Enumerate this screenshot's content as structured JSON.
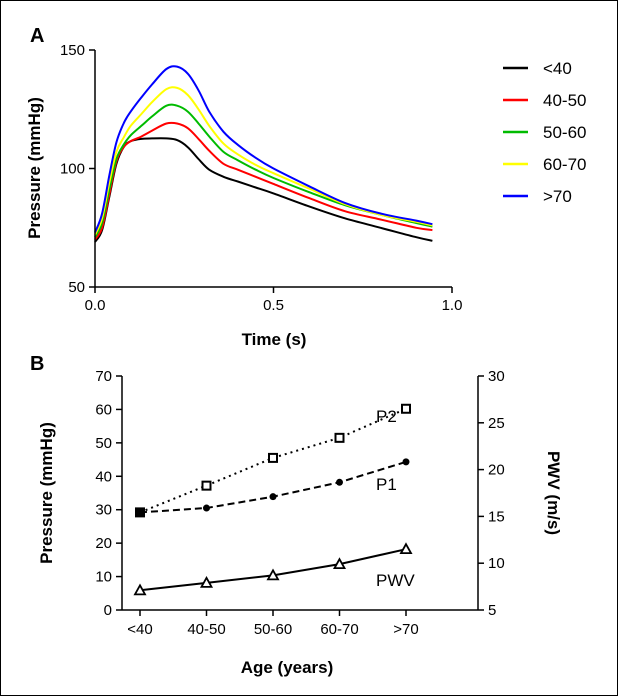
{
  "chart_data": [
    {
      "panel": "A",
      "type": "line",
      "xlabel": "Time (s)",
      "ylabel": "Pressure (mmHg)",
      "xlim": [
        0,
        1.0
      ],
      "ylim": [
        50,
        150
      ],
      "xticks": [
        "0.0",
        "0.5",
        "1.0"
      ],
      "yticks": [
        "50",
        "100",
        "150"
      ],
      "legend_position": "right",
      "series": [
        {
          "name": "<40",
          "color": "#000000",
          "x": [
            0,
            0.02,
            0.04,
            0.06,
            0.08,
            0.1,
            0.13,
            0.16,
            0.2,
            0.23,
            0.26,
            0.29,
            0.32,
            0.36,
            0.4,
            0.45,
            0.5,
            0.6,
            0.7,
            0.8,
            0.9,
            0.945
          ],
          "y": [
            69,
            74,
            88,
            102,
            109,
            111.5,
            112.5,
            112.7,
            112.7,
            112,
            109,
            104,
            99.5,
            96.5,
            94.5,
            92,
            89.5,
            84,
            79,
            75,
            71,
            69.5
          ]
        },
        {
          "name": "40-50",
          "color": "#ff0000",
          "x": [
            0,
            0.02,
            0.04,
            0.06,
            0.08,
            0.1,
            0.13,
            0.16,
            0.2,
            0.23,
            0.26,
            0.29,
            0.32,
            0.36,
            0.4,
            0.45,
            0.5,
            0.6,
            0.7,
            0.8,
            0.9,
            0.945
          ],
          "y": [
            70,
            75,
            89,
            103,
            109,
            111.5,
            113.5,
            116,
            119,
            119,
            117,
            112.5,
            107.5,
            102,
            99.5,
            96.5,
            93.5,
            87.5,
            82,
            78.5,
            75,
            74
          ]
        },
        {
          "name": "50-60",
          "color": "#00bb00",
          "x": [
            0,
            0.02,
            0.04,
            0.06,
            0.08,
            0.1,
            0.13,
            0.16,
            0.2,
            0.23,
            0.26,
            0.29,
            0.32,
            0.36,
            0.4,
            0.45,
            0.5,
            0.6,
            0.7,
            0.8,
            0.9,
            0.945
          ],
          "y": [
            71,
            77,
            91,
            104,
            110,
            114,
            118,
            122,
            126.5,
            126.5,
            124,
            119,
            113.5,
            107,
            103.5,
            99.5,
            96,
            90,
            84.5,
            80.5,
            77,
            75.5
          ]
        },
        {
          "name": "60-70",
          "color": "#ffff00",
          "x": [
            0,
            0.02,
            0.04,
            0.06,
            0.08,
            0.1,
            0.13,
            0.16,
            0.2,
            0.23,
            0.26,
            0.29,
            0.32,
            0.36,
            0.4,
            0.45,
            0.5,
            0.6,
            0.7,
            0.8,
            0.9,
            0.945
          ],
          "y": [
            72,
            79,
            94,
            107,
            113,
            118,
            123,
            128,
            133.5,
            134,
            131,
            125,
            118,
            110.5,
            106,
            101.5,
            98,
            91.5,
            85,
            80.5,
            77.5,
            76
          ]
        },
        {
          "name": ">70",
          "color": "#0000ff",
          "x": [
            0,
            0.02,
            0.04,
            0.06,
            0.08,
            0.1,
            0.13,
            0.16,
            0.2,
            0.23,
            0.26,
            0.29,
            0.32,
            0.36,
            0.4,
            0.45,
            0.5,
            0.6,
            0.7,
            0.8,
            0.9,
            0.945
          ],
          "y": [
            73,
            81,
            97,
            111,
            119,
            124,
            130,
            135.5,
            142,
            143,
            140,
            133,
            124,
            115.5,
            110,
            104.5,
            100,
            92.5,
            85.5,
            81,
            78,
            76.5
          ]
        }
      ]
    },
    {
      "panel": "B",
      "type": "line",
      "xlabel": "Age (years)",
      "ylabel": "Pressure (mmHg)",
      "ylabel_right": "PWV (m/s)",
      "categories": [
        "<40",
        "40-50",
        "50-60",
        "60-70",
        ">70"
      ],
      "ylim": [
        0,
        70
      ],
      "ylim_right": [
        5,
        30
      ],
      "yticks": [
        "0",
        "10",
        "20",
        "30",
        "40",
        "50",
        "60",
        "70"
      ],
      "yticks_right": [
        "5",
        "10",
        "15",
        "20",
        "25",
        "30"
      ],
      "series": [
        {
          "name": "P2",
          "axis": "left",
          "style": "dotted",
          "marker": "square-open",
          "values": [
            29.2,
            37.2,
            45.5,
            51.5,
            60.2
          ]
        },
        {
          "name": "P1",
          "axis": "left",
          "style": "dashed",
          "marker": "circle",
          "values": [
            29.2,
            30.5,
            33.9,
            38.2,
            44.3
          ]
        },
        {
          "name": "PWV",
          "axis": "right",
          "style": "solid",
          "marker": "triangle",
          "values": [
            7.1,
            7.9,
            8.7,
            9.9,
            11.5
          ]
        }
      ]
    }
  ]
}
